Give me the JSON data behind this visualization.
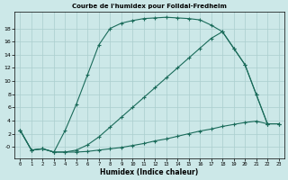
{
  "title": "Courbe de l'humidex pour Folldal-Fredheim",
  "xlabel": "Humidex (Indice chaleur)",
  "xlim": [
    -0.5,
    23.5
  ],
  "ylim": [
    -1.8,
    20.5
  ],
  "xticks": [
    0,
    1,
    2,
    3,
    4,
    5,
    6,
    7,
    8,
    9,
    10,
    11,
    12,
    13,
    14,
    15,
    16,
    17,
    18,
    19,
    20,
    21,
    22,
    23
  ],
  "yticks": [
    0,
    2,
    4,
    6,
    8,
    10,
    12,
    14,
    16,
    18
  ],
  "ytick_labels": [
    "-0",
    "2",
    "4",
    "6",
    "8",
    "10",
    "12",
    "14",
    "16",
    "18"
  ],
  "background_color": "#cce8e8",
  "grid_color": "#aacece",
  "line_color": "#1a6b5a",
  "line1_x": [
    0,
    1,
    2,
    3,
    4,
    5,
    6,
    7,
    8,
    9,
    10,
    11,
    12,
    13,
    14,
    15,
    16,
    17,
    18,
    19,
    20,
    21,
    22,
    23
  ],
  "line1_y": [
    2.5,
    -0.5,
    -0.3,
    -0.8,
    2.5,
    6.5,
    11.0,
    15.5,
    18.0,
    18.8,
    19.2,
    19.5,
    19.6,
    19.7,
    19.6,
    19.5,
    19.3,
    18.5,
    17.5,
    15.0,
    12.5,
    8.0,
    3.5,
    3.5
  ],
  "line2_x": [
    0,
    1,
    2,
    3,
    4,
    5,
    6,
    7,
    8,
    9,
    10,
    11,
    12,
    13,
    14,
    15,
    16,
    17,
    18,
    19,
    20,
    21,
    22,
    23
  ],
  "line2_y": [
    2.5,
    -0.5,
    -0.3,
    -0.8,
    -0.8,
    -0.8,
    -0.7,
    -0.5,
    -0.3,
    -0.1,
    0.2,
    0.5,
    0.9,
    1.2,
    1.6,
    2.0,
    2.4,
    2.7,
    3.1,
    3.4,
    3.7,
    3.9,
    3.5,
    3.5
  ],
  "line3_x": [
    0,
    1,
    2,
    3,
    4,
    5,
    6,
    7,
    8,
    9,
    10,
    11,
    12,
    13,
    14,
    15,
    16,
    17,
    18,
    19,
    20,
    21,
    22,
    23
  ],
  "line3_y": [
    2.5,
    -0.5,
    -0.3,
    -0.8,
    -0.8,
    -0.5,
    0.3,
    1.5,
    3.0,
    4.5,
    6.0,
    7.5,
    9.0,
    10.5,
    12.0,
    13.5,
    15.0,
    16.5,
    17.5,
    15.0,
    12.5,
    8.0,
    3.5,
    3.5
  ]
}
